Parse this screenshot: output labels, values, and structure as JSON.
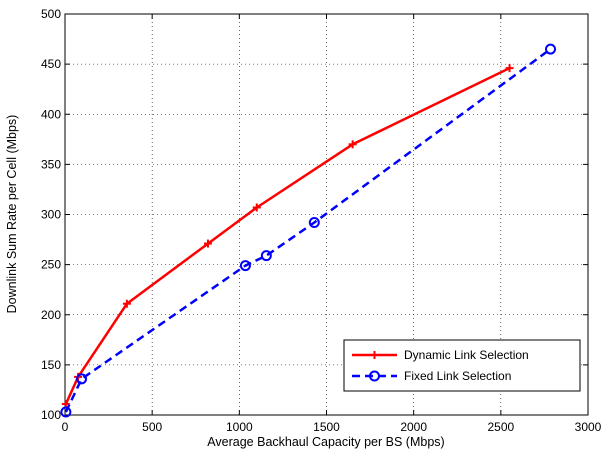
{
  "chart_data": {
    "type": "line",
    "title": "",
    "xlabel": "Average Backhaul Capacity per BS (Mbps)",
    "ylabel": "Downlink Sum Rate per Cell (Mbps)",
    "xlim": [
      0,
      3000
    ],
    "ylim": [
      100,
      500
    ],
    "xticks": [
      "0",
      "500",
      "1000",
      "1500",
      "2000",
      "2500",
      "3000"
    ],
    "yticks": [
      "100",
      "150",
      "200",
      "250",
      "300",
      "350",
      "400",
      "450",
      "500"
    ],
    "grid": true,
    "legend_position": "bottom-right",
    "series": [
      {
        "name": "Dynamic Link Selection",
        "color": "#ff0000",
        "line_style": "solid",
        "marker": "plus",
        "x": [
          5,
          75,
          355,
          820,
          1100,
          1650,
          2550
        ],
        "y": [
          111,
          138,
          211,
          271,
          307,
          370,
          446
        ]
      },
      {
        "name": "Fixed Link Selection",
        "color": "#0000ff",
        "line_style": "dashed",
        "marker": "circle",
        "x": [
          5,
          95,
          1035,
          1155,
          1430,
          2785
        ],
        "y": [
          103,
          136,
          249,
          259,
          292,
          465
        ]
      }
    ]
  }
}
